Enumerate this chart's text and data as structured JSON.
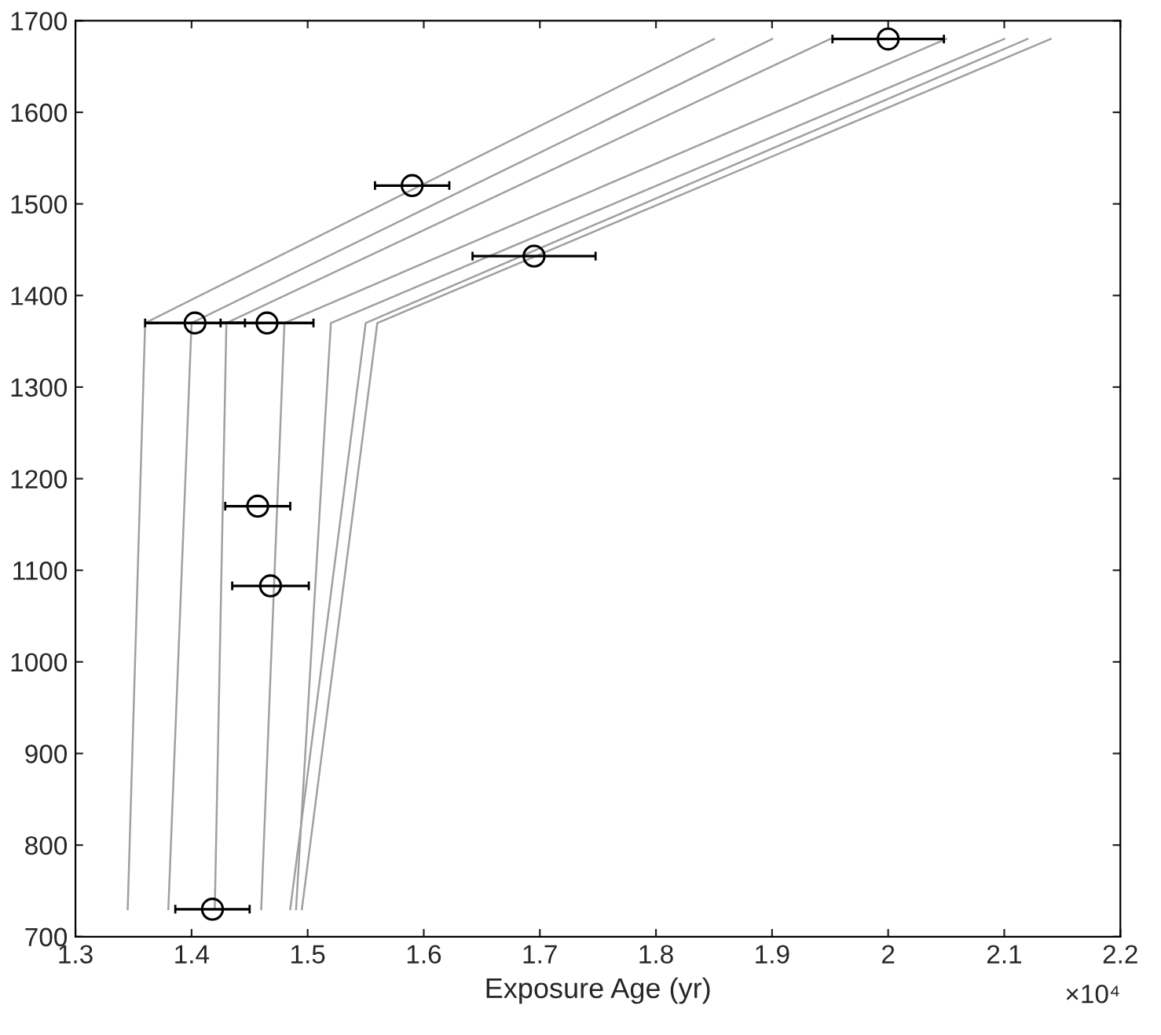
{
  "chart_data": {
    "type": "scatter",
    "xlabel": "Exposure Age (yr)",
    "annotations": [
      "×10⁴"
    ],
    "xlim": [
      1.3,
      2.2
    ],
    "xticks": [
      1.3,
      1.4,
      1.5,
      1.6,
      1.7,
      1.8,
      1.9,
      2,
      2.1,
      2.2
    ],
    "ylim": [
      700,
      1700
    ],
    "yticks": [
      700,
      800,
      900,
      1000,
      1100,
      1200,
      1300,
      1400,
      1500,
      1600,
      1700
    ],
    "grid": false,
    "series": [
      {
        "type": "line",
        "color": "#a0a0a0",
        "x": [
          1.345,
          1.36,
          1.85
        ],
        "values": [
          730,
          1370,
          1680
        ]
      },
      {
        "type": "line",
        "color": "#a0a0a0",
        "x": [
          1.38,
          1.4,
          1.9
        ],
        "values": [
          730,
          1370,
          1680
        ]
      },
      {
        "type": "line",
        "color": "#a0a0a0",
        "x": [
          1.42,
          1.43,
          1.95
        ],
        "values": [
          730,
          1370,
          1680
        ]
      },
      {
        "type": "line",
        "color": "#a0a0a0",
        "x": [
          1.46,
          1.48,
          2.05
        ],
        "values": [
          730,
          1370,
          1680
        ]
      },
      {
        "type": "line",
        "color": "#a0a0a0",
        "x": [
          1.49,
          1.52,
          2.1
        ],
        "values": [
          730,
          1370,
          1680
        ]
      },
      {
        "type": "line",
        "color": "#a0a0a0",
        "x": [
          1.485,
          1.55,
          2.12
        ],
        "values": [
          730,
          1370,
          1680
        ]
      },
      {
        "type": "line",
        "color": "#a0a0a0",
        "x": [
          1.495,
          1.56,
          2.14
        ],
        "values": [
          730,
          1370,
          1680
        ]
      },
      {
        "color": "#000000",
        "marker": "circle",
        "x": [
          2.0,
          1.59,
          1.695,
          1.403,
          1.465,
          1.457,
          1.468,
          1.418
        ],
        "values": [
          1680,
          1520,
          1443,
          1370,
          1370,
          1170,
          1083,
          730
        ],
        "xerrors": [
          0.048,
          0.032,
          0.053,
          0.043,
          0.04,
          0.028,
          0.033,
          0.032
        ]
      }
    ]
  }
}
